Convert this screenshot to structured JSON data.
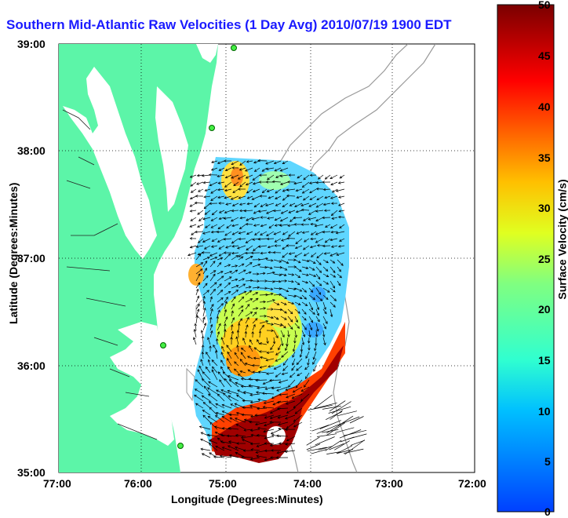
{
  "map": {
    "title": "Southern Mid-Atlantic Raw Velocities (1 Day Avg) 2010/07/19 1900 EDT",
    "xlabel": "Longitude (Degrees:Minutes)",
    "ylabel": "Latitude (Degrees:Minutes)",
    "x_ticks": [
      "77:00",
      "76:00",
      "75:00",
      "74:00",
      "73:00",
      "72:00"
    ],
    "y_ticks": [
      "39:00",
      "38:00",
      "37:00",
      "36:00",
      "35:00"
    ],
    "colorbar": {
      "label": "Surface Velocity (cm/s)",
      "ticks": [
        "50",
        "45",
        "40",
        "35",
        "30",
        "25",
        "20",
        "15",
        "10",
        "5",
        "0"
      ],
      "range": [
        0,
        50
      ],
      "units": "cm/s"
    },
    "colors": {
      "land": "#5cf5a8",
      "title": "#1a1aff",
      "station": "#44ee44"
    }
  }
}
